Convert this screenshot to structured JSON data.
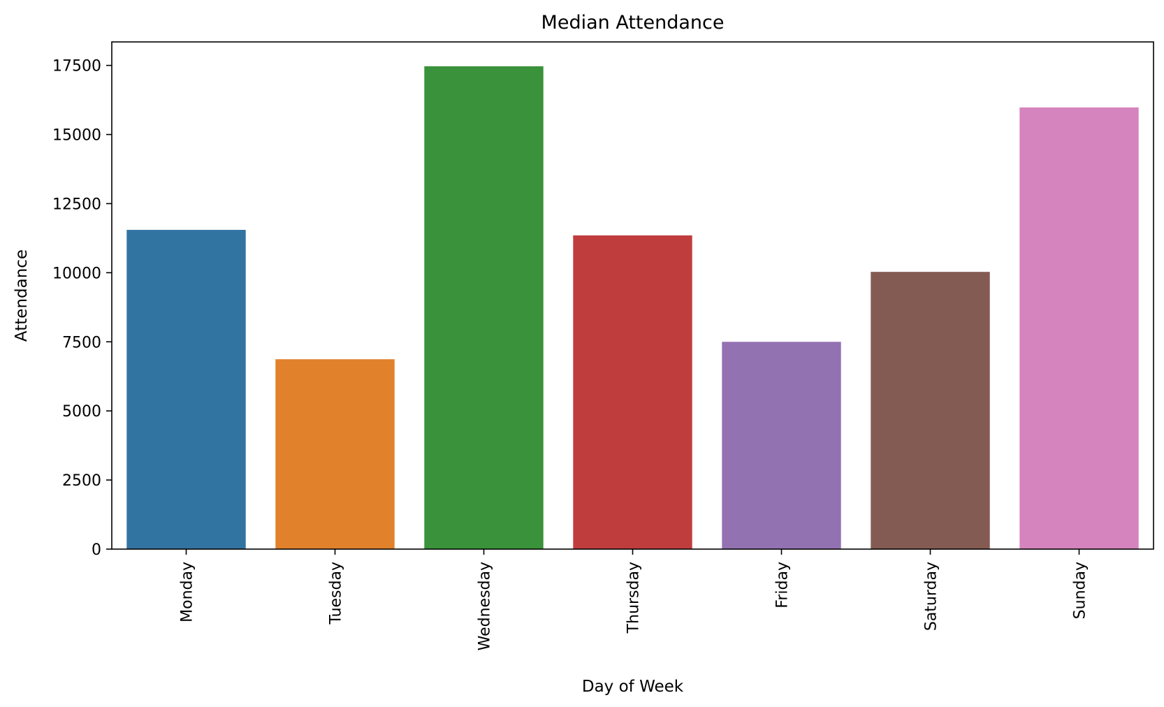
{
  "chart_data": {
    "type": "bar",
    "title": "Median Attendance",
    "xlabel": "Day of Week",
    "ylabel": "Attendance",
    "categories": [
      "Monday",
      "Tuesday",
      "Wednesday",
      "Thursday",
      "Friday",
      "Saturday",
      "Sunday"
    ],
    "values": [
      11550,
      6870,
      17470,
      11350,
      7500,
      10030,
      15980
    ],
    "colors": [
      "#3274a1",
      "#e1812c",
      "#3a923a",
      "#c03d3e",
      "#9372b2",
      "#845b53",
      "#d684bd"
    ],
    "ylim": [
      0,
      18350
    ],
    "yticks": [
      0,
      2500,
      5000,
      7500,
      10000,
      12500,
      15000,
      17500
    ],
    "ytick_labels": [
      "0",
      "2500",
      "5000",
      "7500",
      "10000",
      "12500",
      "15000",
      "17500"
    ],
    "grid": false,
    "legend": "none"
  }
}
